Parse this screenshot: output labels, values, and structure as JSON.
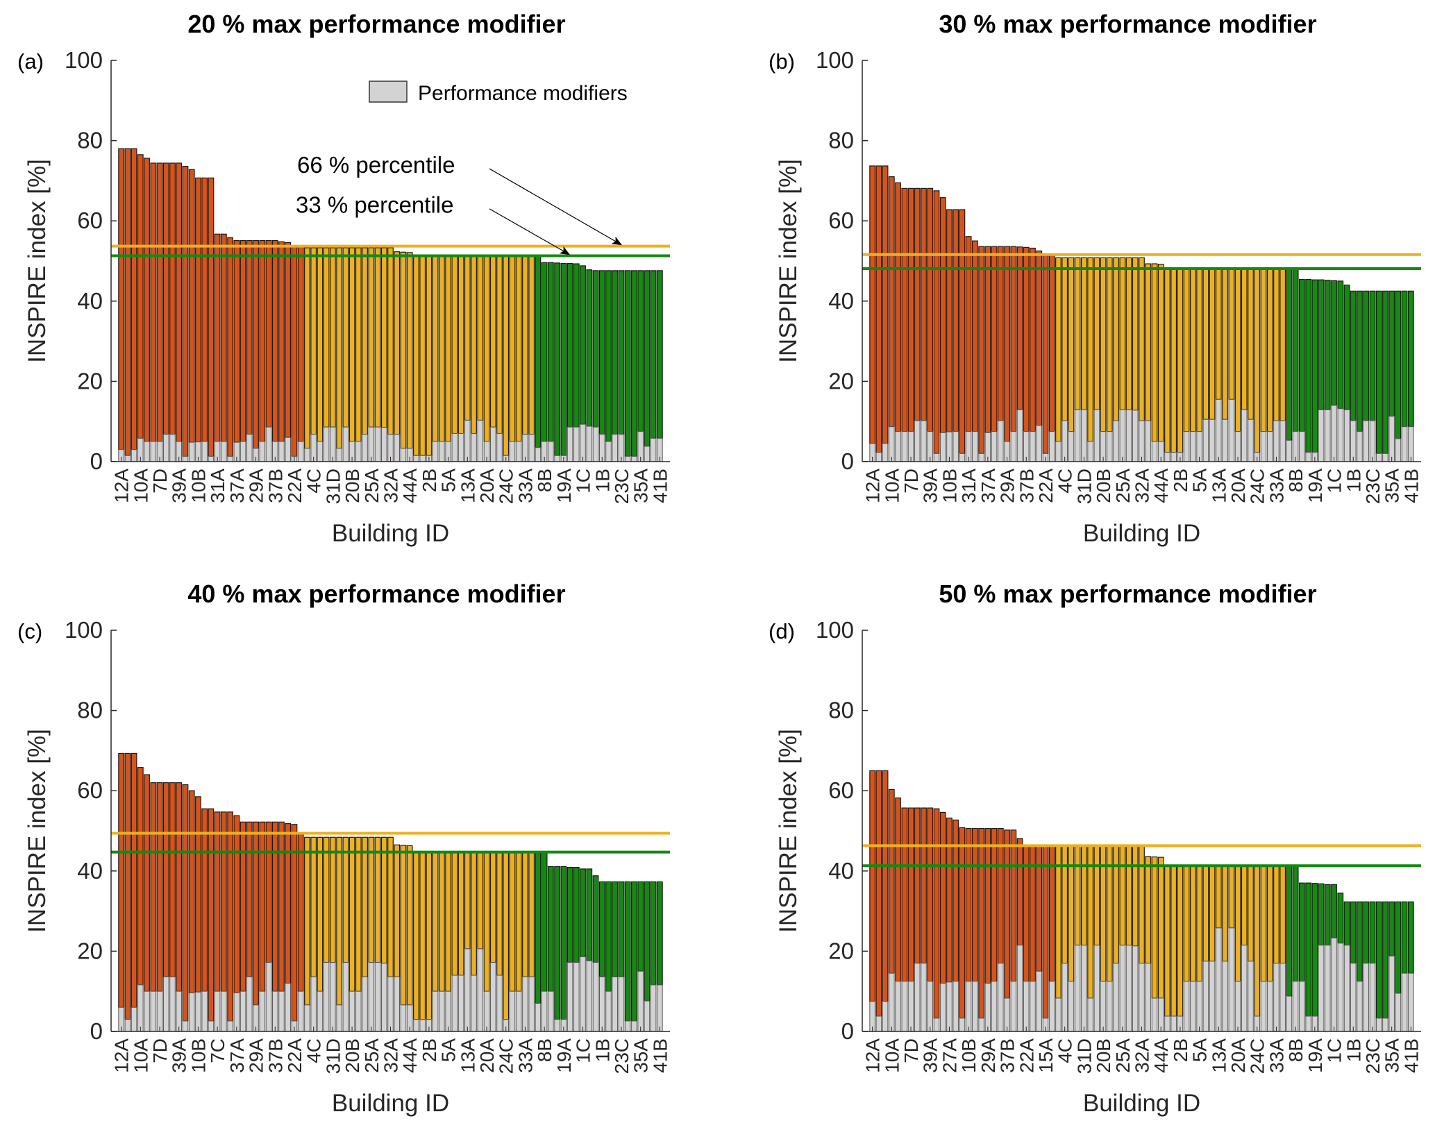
{
  "figure": {
    "ylabel": "INSPIRE index [%]",
    "xlabel": "Building ID",
    "colors": {
      "high": "#D95319",
      "mid": "#EDB120",
      "low": "#138B0F",
      "modifier": "#D3D3D3",
      "p66_line": "#EDB120",
      "p33_line": "#138B0F"
    },
    "legend": {
      "label": "Performance modifiers"
    },
    "annotations": {
      "p66": "66 % percentile",
      "p33": "33 % percentile"
    }
  },
  "chart_data": [
    {
      "type": "bar",
      "stacked": true,
      "panel": "(a)",
      "title": "20 % max performance modifier",
      "xlabel": "Building ID",
      "ylabel": "INSPIRE index [%]",
      "ylim": [
        0,
        100
      ],
      "yticks": [
        0,
        20,
        40,
        60,
        80,
        100
      ],
      "group_counts": {
        "high": 29,
        "mid": 36,
        "low": 20
      },
      "percentile_66": 53.7,
      "percentile_33": 51.3,
      "tick_labels": [
        "12A",
        "10A",
        "7D",
        "39A",
        "10B",
        "31A",
        "37A",
        "29A",
        "37B",
        "22A",
        "4C",
        "31D",
        "20B",
        "25A",
        "32A",
        "44A",
        "2B",
        "5A",
        "13A",
        "20A",
        "24C",
        "33A",
        "8B",
        "19A",
        "1C",
        "1B",
        "23C",
        "35A",
        "41B"
      ],
      "totals": [
        78,
        78,
        78,
        76.5,
        75.6,
        74.4,
        74.4,
        74.4,
        74.4,
        74.4,
        73.6,
        72.8,
        70.7,
        70.7,
        70.7,
        56.7,
        56.7,
        55.8,
        55.1,
        55.1,
        55.1,
        55.1,
        55.1,
        55.1,
        55.1,
        54.8,
        54.6,
        53.7,
        53.7,
        53.3,
        53.3,
        53.3,
        53.3,
        53.3,
        53.3,
        53.3,
        53.3,
        53.3,
        53.3,
        53.3,
        53.3,
        53.3,
        53.3,
        52.3,
        52.2,
        52.1,
        51.3,
        51.3,
        51.3,
        51.3,
        51.3,
        51.3,
        51.3,
        51.3,
        51.3,
        51.3,
        51.3,
        51.3,
        51.3,
        51.3,
        51.3,
        51.3,
        51.3,
        51.3,
        51.3,
        51.3,
        49.6,
        49.6,
        49.5,
        49.4,
        49.4,
        49.3,
        48.8,
        47.8,
        47.6,
        47.6,
        47.6,
        47.6,
        47.6,
        47.6,
        47.6,
        47.6,
        47.6,
        47.6,
        47.6
      ],
      "modifiers": [
        3,
        1.5,
        3,
        5.8,
        5,
        5,
        5,
        6.8,
        6.8,
        5,
        1.3,
        4.8,
        4.9,
        5,
        1.3,
        5,
        5,
        1.3,
        4.8,
        5,
        6.8,
        3.3,
        5,
        8.6,
        5,
        5,
        6,
        1.3,
        5,
        3.3,
        6.8,
        5,
        8.6,
        8.6,
        3.3,
        8.6,
        5,
        5,
        6.8,
        8.6,
        8.6,
        8.5,
        6.8,
        6.8,
        3.3,
        3.3,
        1.5,
        1.5,
        1.5,
        5,
        5,
        5,
        7,
        7,
        10.3,
        7,
        10.3,
        5,
        8.6,
        7,
        1.5,
        5,
        5,
        6.8,
        6.8,
        3.5,
        5,
        5,
        1.5,
        1.5,
        8.6,
        8.6,
        9.3,
        8.8,
        8.6,
        6.8,
        5,
        6.8,
        6.8,
        1.3,
        1.3,
        7.5,
        3.8,
        5.8,
        5.8
      ],
      "legend": "top-right",
      "show_annotations": true
    },
    {
      "type": "bar",
      "stacked": true,
      "panel": "(b)",
      "title": "30 % max performance modifier",
      "xlabel": "Building ID",
      "ylabel": "INSPIRE index [%]",
      "ylim": [
        0,
        100
      ],
      "yticks": [
        0,
        20,
        40,
        60,
        80,
        100
      ],
      "group_counts": {
        "high": 29,
        "mid": 36,
        "low": 20
      },
      "percentile_66": 51.6,
      "percentile_33": 48.1,
      "tick_labels": [
        "12A",
        "10A",
        "7D",
        "39A",
        "10B",
        "31A",
        "37A",
        "29A",
        "37B",
        "22A",
        "4C",
        "31D",
        "20B",
        "25A",
        "32A",
        "44A",
        "2B",
        "5A",
        "13A",
        "20A",
        "24C",
        "33A",
        "8B",
        "19A",
        "1C",
        "1B",
        "23C",
        "35A",
        "41B"
      ],
      "totals": [
        73.7,
        73.7,
        73.7,
        71,
        69.5,
        68.1,
        68.1,
        68.1,
        68.1,
        68.1,
        67.5,
        65.8,
        62.8,
        62.8,
        62.8,
        56.1,
        55,
        53.6,
        53.6,
        53.6,
        53.6,
        53.6,
        53.6,
        53.5,
        53.4,
        53.2,
        52.5,
        51.8,
        51.6,
        50.8,
        50.8,
        50.8,
        50.8,
        50.8,
        50.8,
        50.8,
        50.8,
        50.8,
        50.8,
        50.8,
        50.8,
        50.8,
        50.8,
        49.3,
        49.3,
        49.2,
        48.1,
        48.1,
        48.1,
        48.1,
        48.1,
        48.1,
        48.1,
        48.1,
        48.1,
        48.1,
        48.1,
        48.1,
        48.1,
        48.1,
        48.1,
        48.1,
        48.1,
        48.1,
        48.1,
        48.1,
        48.1,
        45.4,
        45.4,
        45.3,
        45.3,
        45.2,
        45.1,
        45,
        44,
        42.5,
        42.5,
        42.5,
        42.5,
        42.5,
        42.5,
        42.5,
        42.5,
        42.5,
        42.5
      ],
      "modifiers": [
        4.5,
        2.3,
        4.5,
        8.7,
        7.5,
        7.5,
        7.5,
        10.2,
        10.2,
        7.5,
        2,
        7.2,
        7.4,
        7.5,
        2,
        7.5,
        7.5,
        2,
        7.2,
        7.5,
        10.2,
        5,
        7.5,
        12.9,
        7.5,
        7.5,
        9,
        2,
        7.5,
        5,
        10.2,
        7.5,
        12.9,
        12.9,
        5,
        12.9,
        7.5,
        7.5,
        10.2,
        12.9,
        12.9,
        12.8,
        10.2,
        10.2,
        5,
        5,
        2.3,
        2.3,
        2.3,
        7.5,
        7.5,
        7.5,
        10.5,
        10.5,
        15.5,
        10.5,
        15.5,
        7.5,
        12.9,
        10.5,
        2.3,
        7.5,
        7.5,
        10.2,
        10.2,
        5.3,
        7.5,
        7.5,
        2.3,
        2.3,
        12.9,
        12.9,
        14,
        13.2,
        12.9,
        10.2,
        7.5,
        10.2,
        10.2,
        2,
        2,
        11.3,
        5.7,
        8.7,
        8.7
      ],
      "legend": "none",
      "show_annotations": false
    },
    {
      "type": "bar",
      "stacked": true,
      "panel": "(c)",
      "title": "40 % max performance modifier",
      "xlabel": "Building ID",
      "ylabel": "INSPIRE index [%]",
      "ylim": [
        0,
        100
      ],
      "yticks": [
        0,
        20,
        40,
        60,
        80,
        100
      ],
      "group_counts": {
        "high": 29,
        "mid": 36,
        "low": 20
      },
      "percentile_66": 49.4,
      "percentile_33": 44.7,
      "tick_labels": [
        "12A",
        "10A",
        "7D",
        "39A",
        "10B",
        "7C",
        "37A",
        "29A",
        "37B",
        "22A",
        "4C",
        "31D",
        "20B",
        "25A",
        "32A",
        "44A",
        "2B",
        "5A",
        "13A",
        "20A",
        "24C",
        "33A",
        "8B",
        "19A",
        "1C",
        "1B",
        "23C",
        "35A",
        "41B"
      ],
      "totals": [
        69.3,
        69.3,
        69.3,
        65.8,
        64,
        62,
        62,
        62,
        62,
        62,
        61.5,
        60,
        58.5,
        55.5,
        55.5,
        54.7,
        54.7,
        54.7,
        53.8,
        52.2,
        52.2,
        52.2,
        52.2,
        52.2,
        52.2,
        52.2,
        51.8,
        51.6,
        49.4,
        48.4,
        48.4,
        48.4,
        48.4,
        48.4,
        48.4,
        48.4,
        48.4,
        48.4,
        48.4,
        48.4,
        48.4,
        48.4,
        48.4,
        46.5,
        46.4,
        46.3,
        44.7,
        44.7,
        44.7,
        44.7,
        44.7,
        44.7,
        44.7,
        44.7,
        44.7,
        44.7,
        44.7,
        44.7,
        44.7,
        44.7,
        44.7,
        44.7,
        44.7,
        44.7,
        44.7,
        44.7,
        44.7,
        41.1,
        41.1,
        41.1,
        40.9,
        40.9,
        40.5,
        40.5,
        38.8,
        37.3,
        37.3,
        37.3,
        37.3,
        37.3,
        37.3,
        37.3,
        37.3,
        37.3,
        37.3
      ],
      "modifiers": [
        6,
        3,
        6,
        11.6,
        10,
        10,
        10,
        13.6,
        13.6,
        10,
        2.6,
        9.6,
        9.8,
        10,
        2.6,
        10,
        10,
        2.6,
        9.6,
        10,
        13.6,
        6.6,
        10,
        17.2,
        10,
        10,
        12,
        2.6,
        10,
        6.6,
        13.6,
        10,
        17.2,
        17.2,
        6.6,
        17.2,
        10,
        10,
        13.6,
        17.2,
        17.2,
        17,
        13.6,
        13.6,
        6.6,
        6.6,
        3,
        3,
        3,
        10,
        10,
        10,
        14,
        14,
        20.6,
        14,
        20.6,
        10,
        17.2,
        14,
        3,
        10,
        10,
        13.6,
        13.6,
        7,
        10,
        10,
        3,
        3,
        17.2,
        17.2,
        18.6,
        17.6,
        17.2,
        13.6,
        10,
        13.6,
        13.6,
        2.6,
        2.6,
        15,
        7.6,
        11.6,
        11.6
      ],
      "legend": "none",
      "show_annotations": false
    },
    {
      "type": "bar",
      "stacked": true,
      "panel": "(d)",
      "title": "50 % max performance modifier",
      "xlabel": "Building ID",
      "ylabel": "INSPIRE index [%]",
      "ylim": [
        0,
        100
      ],
      "yticks": [
        0,
        20,
        40,
        60,
        80,
        100
      ],
      "group_counts": {
        "high": 29,
        "mid": 36,
        "low": 20
      },
      "percentile_66": 46.3,
      "percentile_33": 41.3,
      "tick_labels": [
        "12A",
        "10A",
        "7D",
        "39A",
        "27A",
        "10B",
        "29A",
        "37B",
        "22A",
        "15A",
        "4C",
        "31D",
        "20B",
        "25A",
        "32A",
        "44A",
        "2B",
        "5A",
        "13A",
        "20A",
        "24C",
        "33A",
        "8B",
        "19A",
        "1C",
        "1B",
        "23C",
        "35A",
        "41B"
      ],
      "totals": [
        65,
        65,
        65,
        60.3,
        58.2,
        55.7,
        55.7,
        55.7,
        55.7,
        55.7,
        55.5,
        54.6,
        53.2,
        52.7,
        50.8,
        50.6,
        50.6,
        50.6,
        50.6,
        50.6,
        50.6,
        50.2,
        50.2,
        48.1,
        46.3,
        46.3,
        46.3,
        46.3,
        46.3,
        46.1,
        46.1,
        46.1,
        46.1,
        46.1,
        46.1,
        46.1,
        46.1,
        46.1,
        46.1,
        46.1,
        46.1,
        46.1,
        46.1,
        43.6,
        43.5,
        43.4,
        41.3,
        41.3,
        41.3,
        41.3,
        41.3,
        41.3,
        41.3,
        41.3,
        41.3,
        41.3,
        41.3,
        41.3,
        41.3,
        41.3,
        41.3,
        41.3,
        41.3,
        41.3,
        41.3,
        41.3,
        41.3,
        37,
        37,
        36.9,
        36.8,
        36.6,
        36.6,
        34.5,
        32.3,
        32.3,
        32.3,
        32.3,
        32.3,
        32.3,
        32.3,
        32.3,
        32.3,
        32.3,
        32.3
      ],
      "modifiers": [
        7.5,
        3.8,
        7.5,
        14.5,
        12.5,
        12.5,
        12.5,
        17,
        17,
        12.5,
        3.3,
        12,
        12.3,
        12.5,
        3.3,
        12.5,
        12.5,
        3.3,
        12,
        12.5,
        17,
        8.3,
        12.5,
        21.5,
        12.5,
        12.5,
        15,
        3.3,
        12.5,
        8.3,
        17,
        12.5,
        21.5,
        21.5,
        8.3,
        21.5,
        12.5,
        12.5,
        17,
        21.5,
        21.5,
        21.3,
        17,
        17,
        8.3,
        8.3,
        3.8,
        3.8,
        3.8,
        12.5,
        12.5,
        12.5,
        17.5,
        17.5,
        25.8,
        17.5,
        25.8,
        12.5,
        21.5,
        17.5,
        3.8,
        12.5,
        12.5,
        17,
        17,
        8.8,
        12.5,
        12.5,
        3.8,
        3.8,
        21.5,
        21.5,
        23.3,
        22,
        21.5,
        17,
        12.5,
        17,
        17,
        3.3,
        3.3,
        18.8,
        9.5,
        14.5,
        14.5
      ],
      "legend": "none",
      "show_annotations": false
    }
  ]
}
